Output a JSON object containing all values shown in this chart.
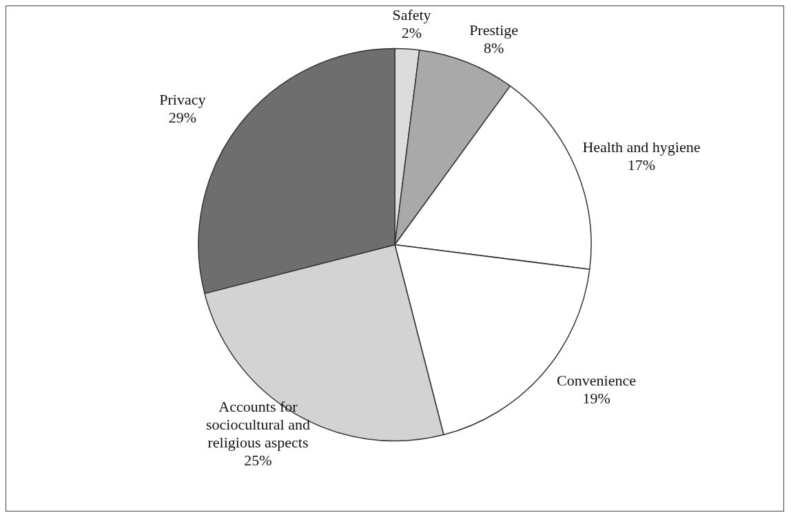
{
  "chart_data": {
    "type": "pie",
    "categories": [
      "Safety",
      "Prestige",
      "Health and hygiene",
      "Convenience",
      "Accounts for sociocultural and religious aspects",
      "Privacy"
    ],
    "values": [
      2,
      8,
      17,
      19,
      25,
      29
    ],
    "value_labels": [
      "2%",
      "8%",
      "17%",
      "19%",
      "25%",
      "29%"
    ],
    "colors": [
      "#dcdcdc",
      "#a9a9a9",
      "#ffffff",
      "#ffffff",
      "#d3d3d3",
      "#6e6e6e"
    ],
    "legend": false
  }
}
